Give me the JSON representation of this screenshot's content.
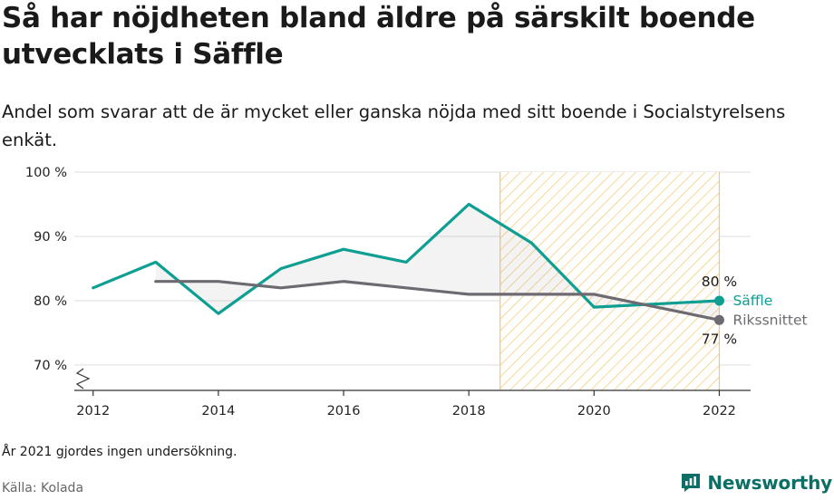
{
  "title": "Så har nöjdheten bland äldre på särskilt boende utvecklats i Säffle",
  "subtitle": "Andel som svarar att de är mycket eller ganska nöjda med sitt boende i Socialstyrelsens enkät.",
  "note": "År 2021 gjordes ingen undersökning.",
  "source": "Källa: Kolada",
  "brand": "Newsworthy",
  "colors": {
    "saffle": "#0e9e92",
    "riket": "#6d6a72",
    "highlight": "#f5c76b"
  },
  "chart_data": {
    "type": "line",
    "x_ticks": [
      "2012",
      "2014",
      "2016",
      "2018",
      "2020",
      "2022"
    ],
    "y_ticks": [
      "70 %",
      "80 %",
      "90 %",
      "100 %"
    ],
    "ylim": [
      70,
      100
    ],
    "xlim": [
      2011.7,
      2022.5
    ],
    "grid": true,
    "highlight_range": [
      2018.5,
      2022
    ],
    "series": [
      {
        "name": "Säffle",
        "color": "#0e9e92",
        "end_label": "80 %",
        "points": [
          [
            2012,
            82
          ],
          [
            2013,
            86
          ],
          [
            2014,
            78
          ],
          [
            2015,
            85
          ],
          [
            2016,
            88
          ],
          [
            2017,
            86
          ],
          [
            2018,
            95
          ],
          [
            2019,
            89
          ],
          [
            2020,
            79
          ],
          [
            2022,
            80
          ]
        ]
      },
      {
        "name": "Rikssnittet",
        "color": "#6d6a72",
        "end_label": "77 %",
        "points": [
          [
            2013,
            83
          ],
          [
            2014,
            83
          ],
          [
            2015,
            82
          ],
          [
            2016,
            83
          ],
          [
            2017,
            82
          ],
          [
            2018,
            81
          ],
          [
            2019,
            81
          ],
          [
            2020,
            81
          ],
          [
            2022,
            77
          ]
        ]
      }
    ]
  }
}
